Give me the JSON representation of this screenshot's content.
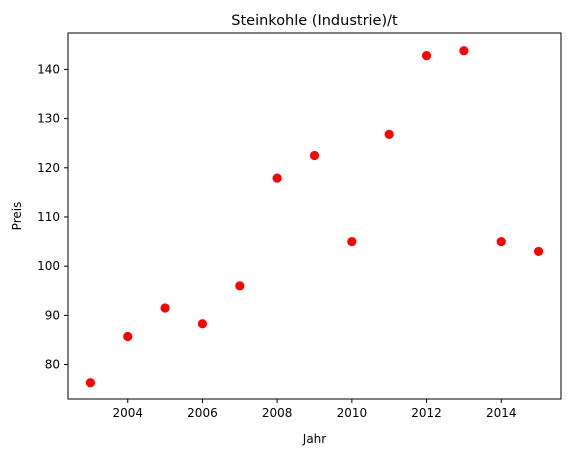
{
  "chart_data": {
    "type": "scatter",
    "title": "Steinkohle (Industrie)/t",
    "xlabel": "Jahr",
    "ylabel": "Preis",
    "xlim": [
      2002.4,
      2015.6
    ],
    "ylim": [
      73.0,
      147.4
    ],
    "xticks": [
      2004,
      2006,
      2008,
      2010,
      2012,
      2014
    ],
    "yticks": [
      80,
      90,
      100,
      110,
      120,
      130,
      140
    ],
    "grid": false,
    "marker_color": "#ff0000",
    "x": [
      2003,
      2004,
      2005,
      2006,
      2007,
      2008,
      2009,
      2010,
      2011,
      2012,
      2013,
      2014,
      2015
    ],
    "y": [
      76.3,
      85.7,
      91.5,
      88.3,
      96.0,
      117.9,
      122.5,
      105.0,
      126.8,
      142.8,
      143.8,
      105.0,
      103.0
    ]
  }
}
